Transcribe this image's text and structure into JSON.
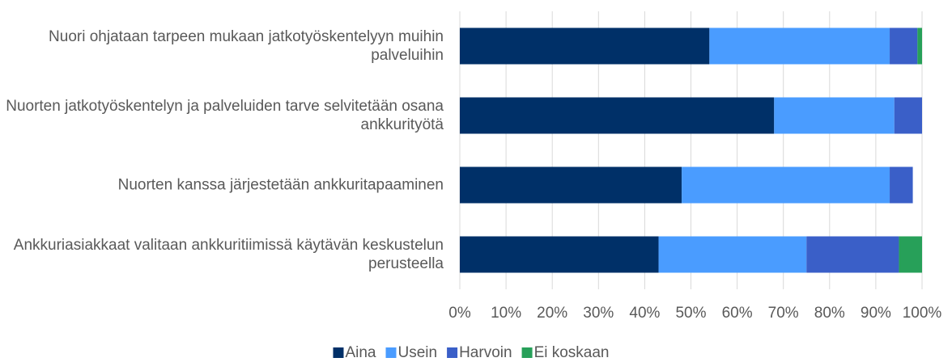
{
  "chart_data": {
    "type": "stacked-barh",
    "categories": [
      "Nuori ohjataan tarpeen mukaan jatkotyöskentelyyn muihin palveluihin",
      "Nuorten jatkotyöskentelyn ja palveluiden tarve selvitetään osana ankkurityötä",
      "Nuorten kanssa järjestetään ankkuritapaaminen",
      "Ankkuriasiakkaat valitaan ankkuritiimissä käytävän keskustelun perusteella"
    ],
    "series": [
      {
        "name": "Aina",
        "color": "#003068",
        "values": [
          54,
          68,
          48,
          43
        ]
      },
      {
        "name": "Usein",
        "color": "#4a9cff",
        "values": [
          39,
          26,
          45,
          32
        ]
      },
      {
        "name": "Harvoin",
        "color": "#3a5fc8",
        "values": [
          6,
          6,
          5,
          20
        ]
      },
      {
        "name": "Ei koskaan",
        "color": "#27a059",
        "values": [
          1,
          0,
          0,
          5
        ]
      }
    ],
    "xlim": [
      0,
      100
    ],
    "xticks": [
      {
        "value": 0,
        "label": "0%"
      },
      {
        "value": 10,
        "label": "10%"
      },
      {
        "value": 20,
        "label": "20%"
      },
      {
        "value": 30,
        "label": "30%"
      },
      {
        "value": 40,
        "label": "40%"
      },
      {
        "value": 50,
        "label": "50%"
      },
      {
        "value": 60,
        "label": "60%"
      },
      {
        "value": 70,
        "label": "70%"
      },
      {
        "value": 80,
        "label": "80%"
      },
      {
        "value": 90,
        "label": "90%"
      },
      {
        "value": 100,
        "label": "100%"
      }
    ],
    "grid": true,
    "legend": "bottom"
  }
}
